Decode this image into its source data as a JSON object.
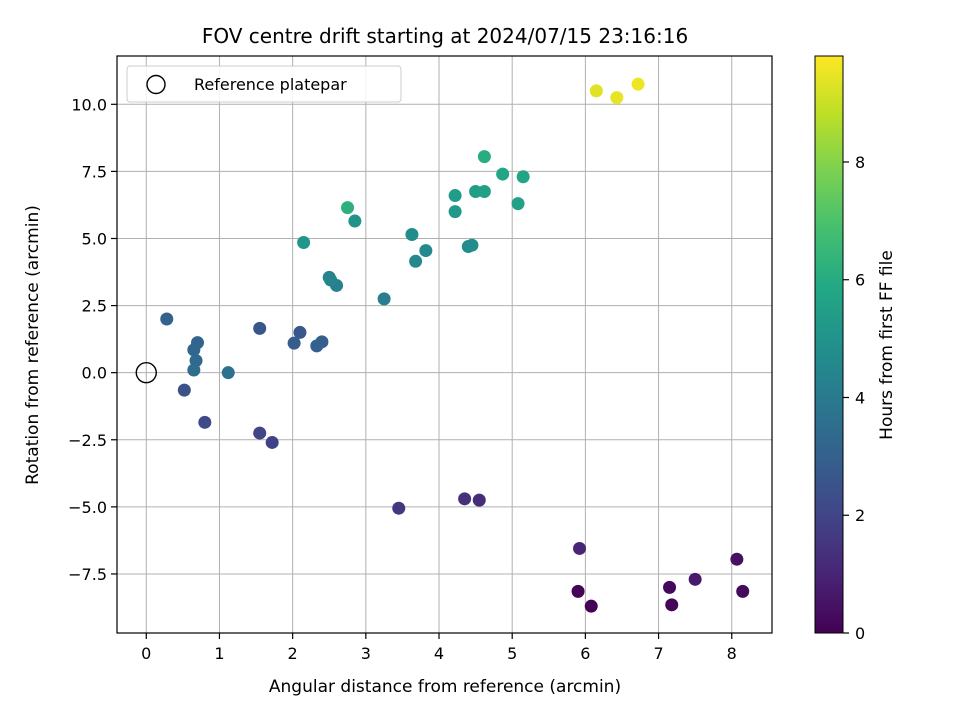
{
  "chart_data": {
    "type": "scatter",
    "title": "FOV centre drift starting at 2024/07/15 23:16:16",
    "xlabel": "Angular distance from reference (arcmin)",
    "ylabel": "Rotation from reference (arcmin)",
    "xlim": [
      -0.4,
      8.55
    ],
    "ylim": [
      -9.7,
      11.8
    ],
    "xticks": [
      "0",
      "1",
      "2",
      "3",
      "4",
      "5",
      "6",
      "7",
      "8"
    ],
    "yticks": [
      "10.0",
      "7.5",
      "5.0",
      "2.5",
      "0.0",
      "−2.5",
      "−5.0",
      "−7.5"
    ],
    "grid": true,
    "legend": {
      "position": "top-left",
      "entries": [
        "Reference platepar"
      ]
    },
    "reference_point": {
      "x": 0,
      "y": 0
    },
    "colorbar": {
      "label": "Hours from first FF file",
      "range": [
        0,
        9.8
      ],
      "ticks": [
        "0",
        "2",
        "4",
        "6",
        "8"
      ],
      "colormap": "viridis"
    },
    "points": [
      {
        "x": 6.08,
        "y": -8.7,
        "h": 0.05
      },
      {
        "x": 5.9,
        "y": -8.15,
        "h": 0.1
      },
      {
        "x": 7.18,
        "y": -8.65,
        "h": 0.15
      },
      {
        "x": 7.15,
        "y": -8.0,
        "h": 0.2
      },
      {
        "x": 8.15,
        "y": -8.15,
        "h": 0.25
      },
      {
        "x": 8.07,
        "y": -6.95,
        "h": 0.45
      },
      {
        "x": 7.5,
        "y": -7.7,
        "h": 0.7
      },
      {
        "x": 5.92,
        "y": -6.55,
        "h": 1.05
      },
      {
        "x": 4.55,
        "y": -4.75,
        "h": 1.25
      },
      {
        "x": 4.35,
        "y": -4.7,
        "h": 1.35
      },
      {
        "x": 3.45,
        "y": -5.05,
        "h": 1.55
      },
      {
        "x": 1.72,
        "y": -2.6,
        "h": 1.9
      },
      {
        "x": 1.55,
        "y": -2.25,
        "h": 2.0
      },
      {
        "x": 0.8,
        "y": -1.85,
        "h": 2.2
      },
      {
        "x": 0.52,
        "y": -0.65,
        "h": 2.45
      },
      {
        "x": 0.28,
        "y": 2.0,
        "h": 3.1
      },
      {
        "x": 1.55,
        "y": 1.65,
        "h": 2.6
      },
      {
        "x": 2.1,
        "y": 1.5,
        "h": 2.7
      },
      {
        "x": 2.02,
        "y": 1.1,
        "h": 2.85
      },
      {
        "x": 2.4,
        "y": 1.15,
        "h": 2.95
      },
      {
        "x": 2.33,
        "y": 1.0,
        "h": 3.0
      },
      {
        "x": 0.7,
        "y": 1.12,
        "h": 3.15
      },
      {
        "x": 0.65,
        "y": 0.85,
        "h": 3.25
      },
      {
        "x": 0.68,
        "y": 0.45,
        "h": 3.35
      },
      {
        "x": 0.65,
        "y": 0.1,
        "h": 3.45
      },
      {
        "x": 1.12,
        "y": 0.0,
        "h": 3.7
      },
      {
        "x": 3.25,
        "y": 2.75,
        "h": 4.1
      },
      {
        "x": 2.6,
        "y": 3.25,
        "h": 4.25
      },
      {
        "x": 2.5,
        "y": 3.55,
        "h": 4.35
      },
      {
        "x": 2.52,
        "y": 3.45,
        "h": 4.4
      },
      {
        "x": 3.68,
        "y": 4.15,
        "h": 4.55
      },
      {
        "x": 3.82,
        "y": 4.55,
        "h": 4.6
      },
      {
        "x": 4.4,
        "y": 4.7,
        "h": 4.65
      },
      {
        "x": 4.45,
        "y": 4.75,
        "h": 4.7
      },
      {
        "x": 3.63,
        "y": 5.15,
        "h": 4.8
      },
      {
        "x": 2.85,
        "y": 5.65,
        "h": 5.0
      },
      {
        "x": 2.15,
        "y": 4.85,
        "h": 5.1
      },
      {
        "x": 4.22,
        "y": 6.0,
        "h": 5.25
      },
      {
        "x": 4.22,
        "y": 6.6,
        "h": 5.35
      },
      {
        "x": 4.5,
        "y": 6.75,
        "h": 5.45
      },
      {
        "x": 4.62,
        "y": 6.75,
        "h": 5.55
      },
      {
        "x": 5.08,
        "y": 6.3,
        "h": 5.6
      },
      {
        "x": 5.15,
        "y": 7.3,
        "h": 5.7
      },
      {
        "x": 4.87,
        "y": 7.4,
        "h": 5.8
      },
      {
        "x": 4.62,
        "y": 8.05,
        "h": 6.05
      },
      {
        "x": 2.75,
        "y": 6.15,
        "h": 6.2
      },
      {
        "x": 6.15,
        "y": 10.5,
        "h": 9.35
      },
      {
        "x": 6.43,
        "y": 10.25,
        "h": 9.45
      },
      {
        "x": 6.72,
        "y": 10.75,
        "h": 9.6
      }
    ]
  }
}
